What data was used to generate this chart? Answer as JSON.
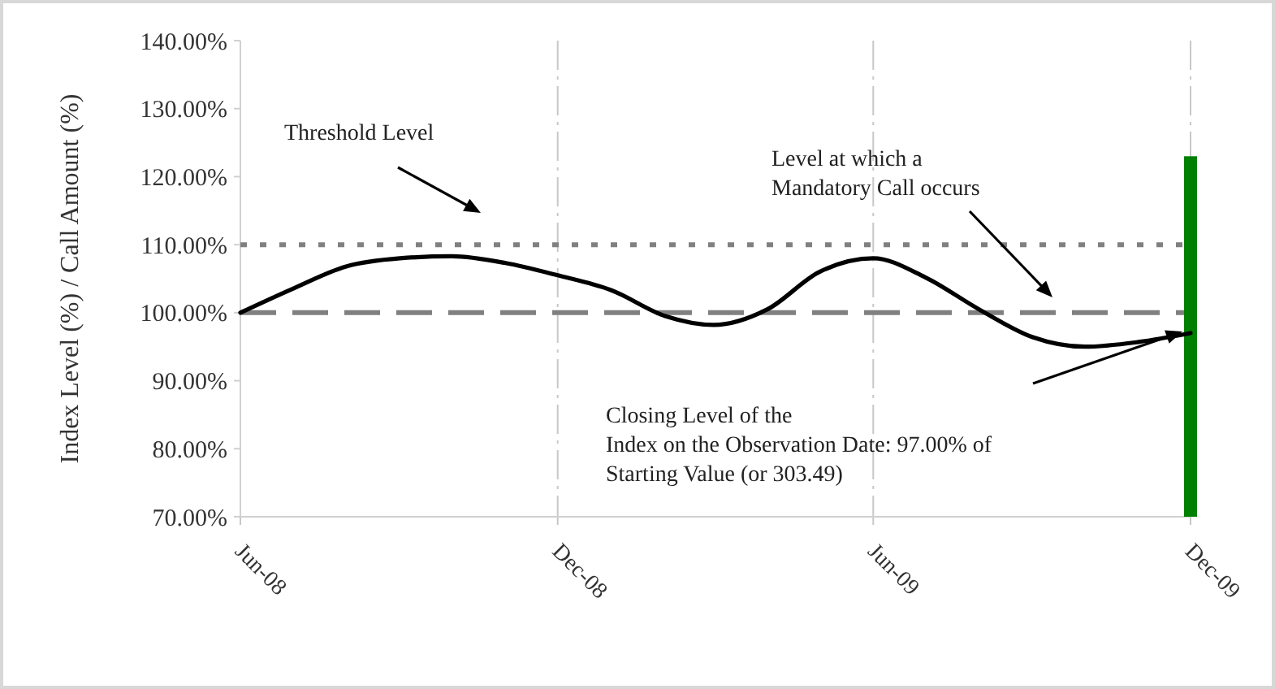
{
  "chart_data": {
    "type": "line",
    "ylabel": "Index Level (%) / Call Amount (%)",
    "x": [
      "2008-06",
      "2008-07",
      "2008-08",
      "2008-09",
      "2008-10",
      "2008-11",
      "2008-12",
      "2009-01",
      "2009-02",
      "2009-03",
      "2009-04",
      "2009-05",
      "2009-06",
      "2009-07",
      "2009-08",
      "2009-09",
      "2009-10",
      "2009-11",
      "2009-12"
    ],
    "series": [
      {
        "color": "#000000",
        "values": [
          100,
          103.5,
          106.8,
          108,
          108.3,
          107.3,
          105.5,
          103.3,
          99.5,
          98.2,
          100.5,
          106,
          108,
          105.2,
          100.5,
          96.4,
          95,
          95.7,
          97
        ]
      },
      {
        "type": "bar",
        "color": "#008000",
        "x": [
          "2009-12"
        ],
        "values": [
          123
        ]
      }
    ],
    "xlim": [
      "2008-06",
      "2009-12"
    ],
    "xticks": [
      {
        "value": "2008-06",
        "label": "Jun-08"
      },
      {
        "value": "2008-12",
        "label": "Dec-08"
      },
      {
        "value": "2009-06",
        "label": "Jun-09"
      },
      {
        "value": "2009-12",
        "label": "Dec-09"
      }
    ],
    "ylim": [
      70,
      140
    ],
    "yticks": [
      {
        "value": 70,
        "label": "70.00%"
      },
      {
        "value": 80,
        "label": "80.00%"
      },
      {
        "value": 90,
        "label": "90.00%"
      },
      {
        "value": 100,
        "label": "100.00%"
      },
      {
        "value": 110,
        "label": "110.00%"
      },
      {
        "value": 120,
        "label": "120.00%"
      },
      {
        "value": 130,
        "label": "130.00%"
      },
      {
        "value": 140,
        "label": "140.00%"
      }
    ],
    "ref_lines": [
      {
        "axis": "y",
        "value": 110,
        "color": "#808080",
        "line_style": "dotted"
      },
      {
        "axis": "y",
        "value": 100,
        "color": "#808080",
        "line_style": "dashed"
      }
    ],
    "annotations": [
      "Threshold Level",
      "Level at which a\nMandatory Call occurs",
      "Closing Level of the\nIndex on the Observation Date: 97.00% of\nStarting Value (or 303.49)"
    ],
    "grid": "x",
    "marker": "none",
    "line_style": "solid"
  }
}
